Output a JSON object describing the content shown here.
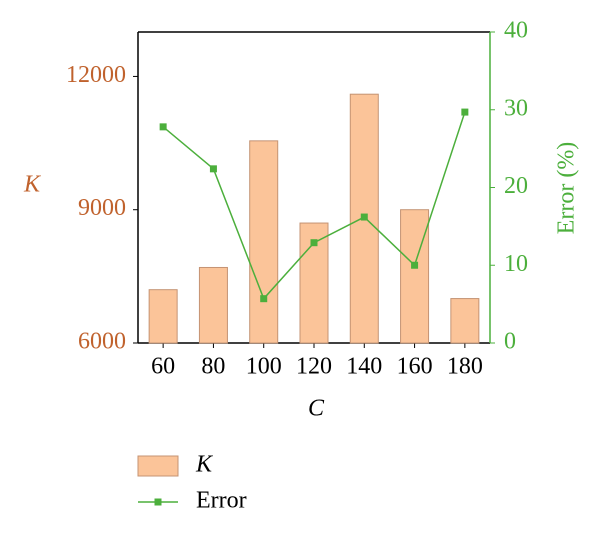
{
  "chart_data": {
    "type": "bar-line",
    "x_label": "C",
    "y_label": "K",
    "y2_label": "Error (%)",
    "categories": [
      "60",
      "80",
      "100",
      "120",
      "140",
      "160",
      "180"
    ],
    "series": [
      {
        "name": "K",
        "type": "bar",
        "color": "#fbc499",
        "values": [
          7200,
          7700,
          10550,
          8700,
          11600,
          9000,
          7000
        ]
      },
      {
        "name": "Error",
        "type": "line",
        "axis": "y2",
        "color": "#4caf3c",
        "values": [
          27.8,
          22.4,
          5.7,
          12.9,
          16.2,
          10.0,
          29.7
        ]
      }
    ],
    "ylim": [
      6000,
      13000
    ],
    "yticks": [
      6000,
      9000,
      12000
    ],
    "y_color": "#c0622d",
    "y2lim": [
      0,
      40
    ],
    "y2ticks": [
      0,
      10,
      20,
      30,
      40
    ],
    "y2_color": "#4caf3c",
    "legend": "bottom"
  }
}
